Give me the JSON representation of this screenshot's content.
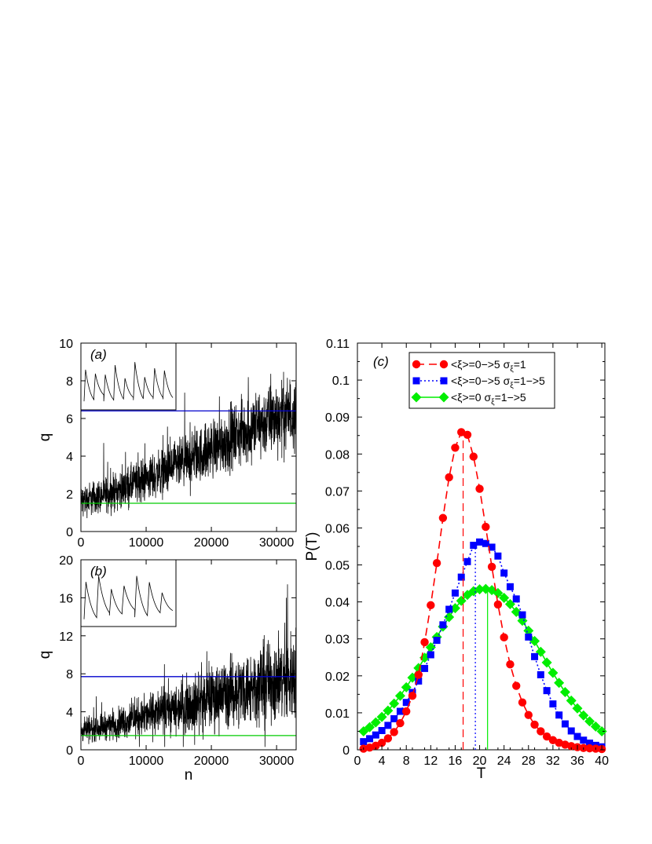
{
  "chart_data": [
    {
      "panel": "a",
      "type": "line",
      "panel_label": "(a)",
      "xlabel": "",
      "ylabel": "q",
      "xlim": [
        0,
        33000
      ],
      "ylim": [
        0,
        10
      ],
      "xticks": [
        "0",
        "10000",
        "20000",
        "30000"
      ],
      "yticks": [
        "0",
        "2",
        "4",
        "6",
        "8",
        "10"
      ],
      "series": [
        {
          "kind": "noisy-trace",
          "color": "#000000",
          "x": [
            0,
            5000,
            10000,
            15000,
            20000,
            25000,
            30000,
            33000
          ],
          "mean": [
            1.6,
            2.1,
            2.8,
            3.5,
            4.4,
            5.3,
            6.1,
            6.4
          ],
          "spread": [
            0.9,
            1.0,
            1.2,
            1.4,
            1.6,
            1.8,
            2.0,
            2.1
          ]
        },
        {
          "kind": "hline",
          "color": "#0000cc",
          "y": 6.4,
          "x_from": 0,
          "x_to": 33000
        },
        {
          "kind": "hline",
          "color": "#00cc00",
          "y": 1.5,
          "x_from": 0,
          "x_to": 33000
        }
      ],
      "inset": {
        "kind": "sawtooth",
        "peaks": 9
      }
    },
    {
      "panel": "b",
      "type": "line",
      "panel_label": "(b)",
      "xlabel": "n",
      "ylabel": "q",
      "xlim": [
        0,
        33000
      ],
      "ylim": [
        0,
        20
      ],
      "xticks": [
        "0",
        "10000",
        "20000",
        "30000"
      ],
      "yticks": [
        "0",
        "4",
        "8",
        "12",
        "16",
        "20"
      ],
      "series": [
        {
          "kind": "noisy-trace",
          "color": "#000000",
          "x": [
            0,
            5000,
            10000,
            15000,
            20000,
            25000,
            30000,
            33000
          ],
          "mean": [
            2.0,
            2.7,
            3.6,
            4.5,
            5.5,
            6.4,
            7.4,
            7.8
          ],
          "spread": [
            1.2,
            1.6,
            2.2,
            2.8,
            3.4,
            4.0,
            4.6,
            5.0
          ]
        },
        {
          "kind": "hline",
          "color": "#0000cc",
          "y": 7.7,
          "x_from": 0,
          "x_to": 33000
        },
        {
          "kind": "hline",
          "color": "#00cc00",
          "y": 1.5,
          "x_from": 0,
          "x_to": 33000
        }
      ],
      "inset": {
        "kind": "sawtooth",
        "peaks": 7
      }
    },
    {
      "panel": "c",
      "type": "line",
      "panel_label": "(c)",
      "xlabel": "T",
      "ylabel": "P(T)",
      "xlim": [
        0,
        40.5
      ],
      "ylim": [
        0,
        0.11
      ],
      "xticks": [
        "0",
        "4",
        "8",
        "12",
        "16",
        "20",
        "24",
        "28",
        "32",
        "36",
        "40"
      ],
      "yticks": [
        "0",
        "0.01",
        "0.02",
        "0.03",
        "0.04",
        "0.05",
        "0.06",
        "0.07",
        "0.08",
        "0.09",
        "0.1",
        "0.11"
      ],
      "legend_position": "top-right",
      "x": [
        1,
        2,
        3,
        4,
        5,
        6,
        7,
        8,
        9,
        10,
        11,
        12,
        13,
        14,
        15,
        16,
        17,
        18,
        19,
        20,
        21,
        22,
        23,
        24,
        25,
        26,
        27,
        28,
        29,
        30,
        31,
        32,
        33,
        34,
        35,
        36,
        37,
        38,
        39,
        40
      ],
      "series": [
        {
          "name": "<ξ>=0−>5 σξ=1",
          "legend_main": "<ξ>=0−>5 σ",
          "legend_sub": "ξ",
          "legend_tail": "=1",
          "color": "#ff0000",
          "marker": "circle",
          "dash": "10,6",
          "marker_every": 1,
          "mean_T": 17.3,
          "values": [
            0.0003,
            0.0006,
            0.0011,
            0.0019,
            0.0031,
            0.0048,
            0.0072,
            0.0104,
            0.0146,
            0.0203,
            0.0291,
            0.0391,
            0.0505,
            0.0627,
            0.0737,
            0.0817,
            0.0859,
            0.0852,
            0.0793,
            0.0706,
            0.0603,
            0.0495,
            0.0393,
            0.0304,
            0.0231,
            0.0173,
            0.0128,
            0.0094,
            0.0068,
            0.005,
            0.0036,
            0.0026,
            0.0019,
            0.0014,
            0.001,
            0.0007,
            0.0005,
            0.0004,
            0.0003,
            0.0002
          ]
        },
        {
          "name": "<ξ>=0−>5 σξ=1−>5",
          "legend_main": "<ξ>=0−>5 σ",
          "legend_sub": "ξ",
          "legend_tail": "=1−>5",
          "color": "#0000ff",
          "marker": "square",
          "dash": "2,3",
          "marker_every": 1,
          "mean_T": 19.3,
          "values": [
            0.0022,
            0.003,
            0.004,
            0.0052,
            0.0066,
            0.0084,
            0.0104,
            0.0128,
            0.0155,
            0.0186,
            0.022,
            0.0257,
            0.0296,
            0.0338,
            0.038,
            0.0424,
            0.0467,
            0.0509,
            0.0553,
            0.0562,
            0.0558,
            0.0548,
            0.0524,
            0.0478,
            0.0441,
            0.0408,
            0.0365,
            0.0305,
            0.0252,
            0.0203,
            0.016,
            0.0124,
            0.0094,
            0.007,
            0.0051,
            0.0036,
            0.0026,
            0.0018,
            0.0012,
            0.0008
          ]
        },
        {
          "name": "<ξ>=0 σξ=1−>5",
          "legend_main": "<ξ>=0 σ",
          "legend_sub": "ξ",
          "legend_tail": "=1−>5",
          "color": "#00ee00",
          "marker": "diamond",
          "dash": "",
          "marker_every": 1,
          "mean_T": 21.3,
          "values": [
            0.005,
            0.0061,
            0.0074,
            0.0089,
            0.0106,
            0.0125,
            0.0146,
            0.0169,
            0.0195,
            0.0221,
            0.0249,
            0.0277,
            0.0305,
            0.0333,
            0.0359,
            0.0383,
            0.0403,
            0.0419,
            0.0429,
            0.0434,
            0.0435,
            0.0432,
            0.0424,
            0.0411,
            0.0394,
            0.0373,
            0.0349,
            0.0322,
            0.0294,
            0.0265,
            0.0236,
            0.0208,
            0.0181,
            0.0156,
            0.0133,
            0.0112,
            0.0093,
            0.0077,
            0.0063,
            0.005
          ]
        }
      ]
    }
  ]
}
